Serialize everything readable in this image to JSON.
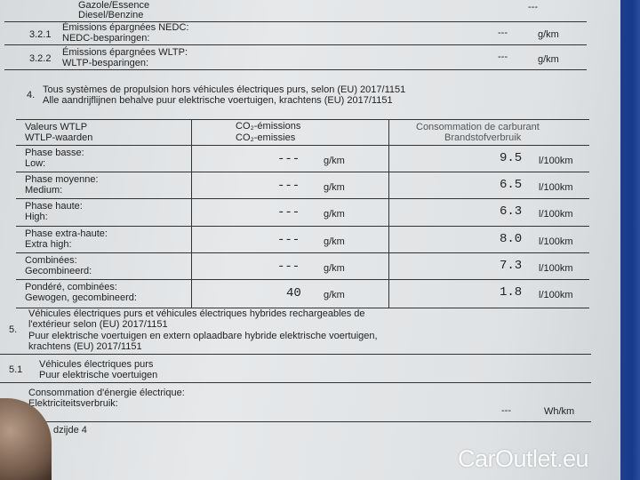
{
  "fuel": {
    "fr": "Gazole/Essence",
    "nl": "Diesel/Benzine",
    "value": "---"
  },
  "s321": {
    "num": "3.2.1",
    "fr": "Émissions épargnées NEDC:",
    "nl": "NEDC-besparingen:",
    "value": "---",
    "unit": "g/km"
  },
  "s322": {
    "num": "3.2.2",
    "fr": "Émissions épargnées WLTP:",
    "nl": "WLTP-besparingen:",
    "value": "---",
    "unit": "g/km"
  },
  "s4": {
    "num": "4.",
    "fr": "Tous systèmes de propulsion hors véhicules électriques purs, selon (EU) 2017/1151",
    "nl": "Alle aandrijflijnen behalve puur elektrische voertuigen, krachtens (EU) 2017/1151"
  },
  "table": {
    "headers": {
      "c1_fr": "Valeurs WTLP",
      "c1_nl": "WTLP-waarden",
      "c2_fr": "CO₂-émissions",
      "c2_nl": "CO₂-emissies",
      "c3_fr": "Consommation de carburant",
      "c3_nl": "Brandstofverbruik"
    },
    "rows": [
      {
        "fr": "Phase basse:",
        "nl": "Low:",
        "co2": "---",
        "co2_unit": "g/km",
        "fuel": "9.5",
        "fuel_unit": "l/100km"
      },
      {
        "fr": "Phase moyenne:",
        "nl": "Medium:",
        "co2": "---",
        "co2_unit": "g/km",
        "fuel": "6.5",
        "fuel_unit": "l/100km"
      },
      {
        "fr": "Phase haute:",
        "nl": "High:",
        "co2": "---",
        "co2_unit": "g/km",
        "fuel": "6.3",
        "fuel_unit": "l/100km"
      },
      {
        "fr": "Phase extra-haute:",
        "nl": "Extra high:",
        "co2": "---",
        "co2_unit": "g/km",
        "fuel": "8.0",
        "fuel_unit": "l/100km"
      },
      {
        "fr": "Combinées:",
        "nl": "Gecombineerd:",
        "co2": "---",
        "co2_unit": "g/km",
        "fuel": "7.3",
        "fuel_unit": "l/100km"
      },
      {
        "fr": "Pondéré, combinées:",
        "nl": "Gewogen, gecombineerd:",
        "co2": "40",
        "co2_unit": "g/km",
        "fuel": "1.8",
        "fuel_unit": "l/100km"
      }
    ]
  },
  "s5": {
    "num": "5.",
    "fr1": "Véhicules électriques purs et véhicules électriques hybrides rechargeables de",
    "fr2": "l'extérieur selon (EU) 2017/1151",
    "nl1": "Puur elektrische voertuigen en extern oplaadbare hybride elektrische voertuigen,",
    "nl2": "krachtens (EU) 2017/1151"
  },
  "s51": {
    "num": "5.1",
    "fr": "Véhicules électriques purs",
    "nl": "Puur elektrische voertuigen"
  },
  "elec": {
    "fr": "Consommation d'énergie électrique:",
    "nl": "Elektriciteitsverbruik:",
    "value": "---",
    "unit": "Wh/km"
  },
  "footer": "dzijde 4",
  "watermark": "CarOutlet.eu"
}
